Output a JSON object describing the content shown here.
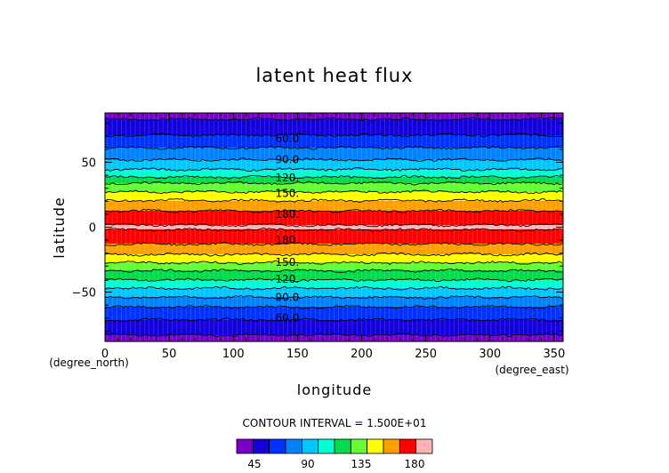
{
  "chart_data": {
    "type": "heatmap",
    "title": "latent heat flux",
    "xlabel": "longitude",
    "ylabel": "latitude",
    "x_unit": "(degree_east)",
    "y_unit": "(degree_north)",
    "xlim": [
      0,
      357
    ],
    "ylim": [
      -88,
      88
    ],
    "x_ticks": [
      "0",
      "50",
      "100",
      "150",
      "200",
      "250",
      "300",
      "350"
    ],
    "y_ticks": [
      "50",
      "0",
      "−50"
    ],
    "x_tick_values": [
      0,
      50,
      100,
      150,
      200,
      250,
      300,
      350
    ],
    "y_tick_values": [
      50,
      0,
      -50
    ],
    "contour_interval_text": "CONTOUR INTERVAL = 1.500E+01",
    "contour_labels": [
      {
        "text": "60.0",
        "lat": 68
      },
      {
        "text": "90.0",
        "lat": 52
      },
      {
        "text": "120.",
        "lat": 38
      },
      {
        "text": "150.",
        "lat": 26
      },
      {
        "text": "180.",
        "lat": 10
      },
      {
        "text": "180.",
        "lat": -10
      },
      {
        "text": "150.",
        "lat": -27
      },
      {
        "text": "120.",
        "lat": -40
      },
      {
        "text": "90.0",
        "lat": -54
      },
      {
        "text": "60.0",
        "lat": -70
      }
    ],
    "label_lon": 130,
    "levels": [
      30,
      45,
      60,
      75,
      90,
      105,
      120,
      135,
      150,
      165,
      180,
      195
    ],
    "level_colors": [
      "#7a00c8",
      "#1400dc",
      "#0032ff",
      "#0082ff",
      "#00c8ff",
      "#00ffd2",
      "#00dc4b",
      "#64ff32",
      "#ffff00",
      "#ffa000",
      "#ff0000",
      "#ffb4b4"
    ],
    "profile": [
      {
        "lat": 88,
        "value": 35
      },
      {
        "lat": 85,
        "value": 40
      },
      {
        "lat": 82,
        "value": 48
      },
      {
        "lat": 78,
        "value": 54
      },
      {
        "lat": 74,
        "value": 58
      },
      {
        "lat": 68,
        "value": 62
      },
      {
        "lat": 62,
        "value": 73
      },
      {
        "lat": 58,
        "value": 83
      },
      {
        "lat": 52,
        "value": 90
      },
      {
        "lat": 46,
        "value": 102
      },
      {
        "lat": 41,
        "value": 112
      },
      {
        "lat": 37,
        "value": 125
      },
      {
        "lat": 33,
        "value": 138
      },
      {
        "lat": 28,
        "value": 148
      },
      {
        "lat": 24,
        "value": 158
      },
      {
        "lat": 19,
        "value": 168
      },
      {
        "lat": 15,
        "value": 177
      },
      {
        "lat": 10,
        "value": 183
      },
      {
        "lat": 6,
        "value": 190
      },
      {
        "lat": 0,
        "value": 197
      },
      {
        "lat": -4,
        "value": 193
      },
      {
        "lat": -8,
        "value": 186
      },
      {
        "lat": -13,
        "value": 180
      },
      {
        "lat": -18,
        "value": 171
      },
      {
        "lat": -22,
        "value": 163
      },
      {
        "lat": -27,
        "value": 151
      },
      {
        "lat": -32,
        "value": 138
      },
      {
        "lat": -37,
        "value": 128
      },
      {
        "lat": -42,
        "value": 117
      },
      {
        "lat": -47,
        "value": 105
      },
      {
        "lat": -52,
        "value": 94
      },
      {
        "lat": -57,
        "value": 84
      },
      {
        "lat": -62,
        "value": 74
      },
      {
        "lat": -68,
        "value": 64
      },
      {
        "lat": -73,
        "value": 58
      },
      {
        "lat": -78,
        "value": 52
      },
      {
        "lat": -83,
        "value": 45
      },
      {
        "lat": -86,
        "value": 38
      },
      {
        "lat": -88,
        "value": 33
      }
    ],
    "colorbar": {
      "tick_labels": [
        "45",
        "90",
        "135",
        "180"
      ],
      "tick_values": [
        45,
        90,
        135,
        180
      ],
      "levels": [
        30,
        195
      ]
    }
  }
}
